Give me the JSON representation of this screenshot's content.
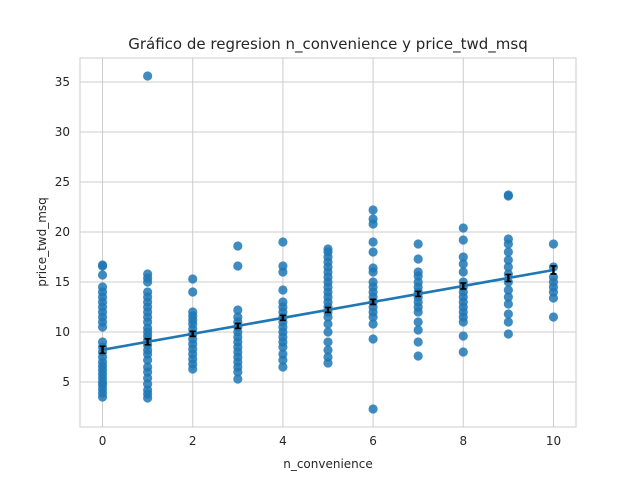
{
  "chart_data": {
    "type": "scatter",
    "title": "Gráfico de regresion n_convenience y price_twd_msq",
    "xlabel": "n_convenience",
    "ylabel": "price_twd_msq",
    "xlim": [
      -0.5,
      10.5
    ],
    "ylim": [
      0.5,
      37.4
    ],
    "xticks": [
      0,
      2,
      4,
      6,
      8,
      10
    ],
    "yticks": [
      5,
      10,
      15,
      20,
      25,
      30,
      35
    ],
    "grid": true,
    "colors": {
      "points": "#1f77b4",
      "line": "#1f77b4",
      "ci": "#000000"
    },
    "regression": {
      "intercept": 8.22,
      "slope": 0.798,
      "x_range": [
        0,
        10
      ],
      "ci_halfwidth": [
        0.35,
        0.3,
        0.25,
        0.25,
        0.25,
        0.25,
        0.25,
        0.25,
        0.3,
        0.35,
        0.4
      ]
    },
    "points": [
      {
        "x": 0,
        "y": [
          3.5,
          3.9,
          4.3,
          4.7,
          5.0,
          5.4,
          5.8,
          6.2,
          6.6,
          7.0,
          7.5,
          8.0,
          8.5,
          9.0,
          10.5,
          11.0,
          11.5,
          12.0,
          12.5,
          13.0,
          13.5,
          14.0,
          14.5,
          15.7,
          16.6,
          16.7
        ]
      },
      {
        "x": 1,
        "y": [
          3.4,
          3.8,
          4.2,
          4.8,
          5.4,
          6.0,
          6.5,
          7.2,
          7.8,
          8.2,
          8.7,
          9.2,
          9.6,
          10.0,
          10.4,
          11.0,
          11.5,
          12.0,
          12.5,
          13.0,
          13.5,
          14.0,
          15.0,
          15.4,
          15.8,
          35.6
        ]
      },
      {
        "x": 2,
        "y": [
          6.3,
          6.8,
          7.3,
          7.8,
          8.3,
          8.8,
          9.3,
          9.8,
          10.3,
          10.8,
          11.2,
          11.6,
          12.0,
          14.0,
          15.3
        ]
      },
      {
        "x": 3,
        "y": [
          5.3,
          6.0,
          6.5,
          7.0,
          7.5,
          8.0,
          8.5,
          9.0,
          9.5,
          10.0,
          10.5,
          11.0,
          11.5,
          12.2,
          16.6,
          18.6
        ]
      },
      {
        "x": 4,
        "y": [
          6.5,
          7.2,
          7.8,
          8.5,
          9.0,
          9.5,
          10.0,
          10.5,
          11.0,
          11.5,
          12.0,
          12.5,
          13.0,
          14.2,
          16.0,
          16.6,
          19.0
        ]
      },
      {
        "x": 5,
        "y": [
          6.9,
          7.5,
          8.2,
          9.0,
          10.0,
          10.8,
          11.5,
          12.0,
          12.5,
          13.0,
          13.5,
          14.0,
          14.5,
          15.0,
          15.5,
          16.0,
          16.5,
          17.0,
          17.5,
          18.0,
          18.3
        ]
      },
      {
        "x": 6,
        "y": [
          2.3,
          9.3,
          10.8,
          11.5,
          12.0,
          12.5,
          13.0,
          13.5,
          14.0,
          14.5,
          15.0,
          16.0,
          16.4,
          18.0,
          19.0,
          20.8,
          21.3,
          22.2
        ]
      },
      {
        "x": 7,
        "y": [
          7.6,
          9.0,
          10.2,
          11.0,
          12.0,
          12.5,
          13.0,
          13.5,
          14.0,
          14.5,
          15.0,
          15.6,
          16.0,
          17.3,
          18.8
        ]
      },
      {
        "x": 8,
        "y": [
          8.0,
          9.6,
          11.0,
          11.5,
          12.0,
          12.5,
          13.0,
          13.5,
          14.0,
          14.5,
          15.0,
          16.0,
          16.8,
          17.5,
          19.2,
          20.4
        ]
      },
      {
        "x": 9,
        "y": [
          9.8,
          11.0,
          11.8,
          12.8,
          13.5,
          14.2,
          15.0,
          15.8,
          16.5,
          17.2,
          18.0,
          18.8,
          19.3,
          23.6,
          23.7
        ]
      },
      {
        "x": 10,
        "y": [
          11.5,
          13.4,
          14.0,
          14.5,
          15.0,
          15.5,
          16.5,
          18.8
        ]
      }
    ]
  }
}
